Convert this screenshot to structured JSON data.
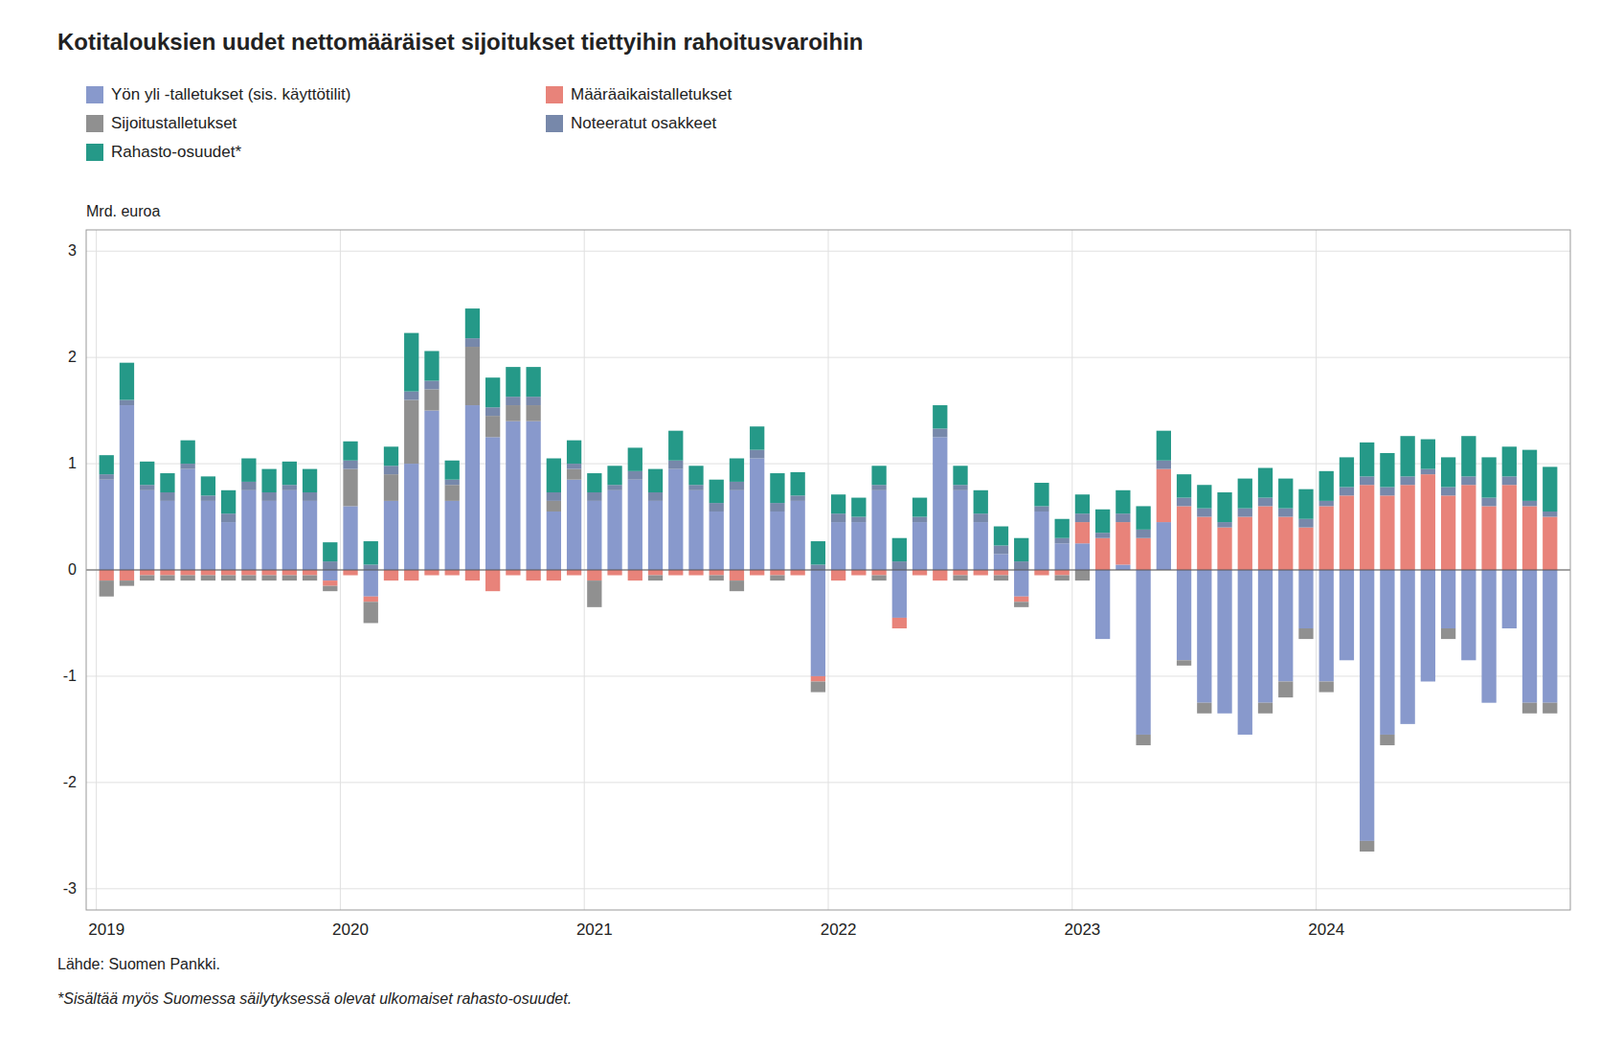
{
  "chart_data": {
    "type": "bar",
    "stacked": true,
    "title": "Kotitalouksien uudet nettomääräiset sijoitukset tiettyihin rahoitusvaroihin",
    "ylabel": "Mrd. euroa",
    "annotations": [
      "Lähde: Suomen Pankki.",
      "*Sisältää myös Suomessa säilytyksessä olevat ulkomaiset rahasto-osuudet."
    ],
    "categories": [
      "2019",
      null,
      null,
      null,
      null,
      null,
      null,
      null,
      null,
      null,
      null,
      null,
      "2020",
      null,
      null,
      null,
      null,
      null,
      null,
      null,
      null,
      null,
      null,
      null,
      "2021",
      null,
      null,
      null,
      null,
      null,
      null,
      null,
      null,
      null,
      null,
      null,
      "2022",
      null,
      null,
      null,
      null,
      null,
      null,
      null,
      null,
      null,
      null,
      null,
      "2023",
      null,
      null,
      null,
      null,
      null,
      null,
      null,
      null,
      null,
      null,
      null,
      "2024",
      null,
      null,
      null,
      null,
      null,
      null,
      null,
      null,
      null,
      null,
      null
    ],
    "series": [
      {
        "name": "Yön yli -talletukset (sis. käyttötilit)",
        "color": "#8899cc",
        "values": [
          0.85,
          1.55,
          0.75,
          0.65,
          0.95,
          0.65,
          0.45,
          0.75,
          0.65,
          0.75,
          0.65,
          -0.1,
          0.6,
          -0.25,
          0.65,
          1.0,
          1.5,
          0.65,
          1.55,
          1.25,
          1.4,
          1.4,
          0.55,
          0.85,
          0.65,
          0.75,
          0.85,
          0.65,
          0.95,
          0.75,
          0.55,
          0.75,
          1.05,
          0.55,
          0.65,
          -1.0,
          0.45,
          0.45,
          0.75,
          -0.45,
          0.45,
          1.25,
          0.75,
          0.45,
          0.15,
          -0.25,
          0.55,
          0.25,
          0.25,
          -0.65,
          0.05,
          -1.55,
          0.45,
          -0.85,
          -1.25,
          -1.35,
          -1.55,
          -1.25,
          -1.05,
          -0.55,
          -1.05,
          -0.85,
          -2.55,
          -1.55,
          -1.45,
          -1.05,
          -0.55,
          -0.85,
          -1.25,
          -0.55,
          -1.25,
          -1.25
        ]
      },
      {
        "name": "Määräaikaistalletukset",
        "color": "#e8837a",
        "values": [
          -0.1,
          -0.1,
          -0.05,
          -0.05,
          -0.05,
          -0.05,
          -0.05,
          -0.05,
          -0.05,
          -0.05,
          -0.05,
          -0.05,
          -0.05,
          -0.05,
          -0.1,
          -0.1,
          -0.05,
          -0.05,
          -0.1,
          -0.2,
          -0.05,
          -0.1,
          -0.1,
          -0.05,
          -0.1,
          -0.05,
          -0.1,
          -0.05,
          -0.05,
          -0.05,
          -0.05,
          -0.1,
          -0.05,
          -0.05,
          -0.05,
          -0.05,
          -0.1,
          -0.05,
          -0.05,
          -0.1,
          -0.05,
          -0.1,
          -0.05,
          -0.05,
          -0.05,
          -0.05,
          -0.05,
          -0.05,
          0.2,
          0.3,
          0.4,
          0.3,
          0.5,
          0.6,
          0.5,
          0.4,
          0.5,
          0.6,
          0.5,
          0.4,
          0.6,
          0.7,
          0.8,
          0.7,
          0.8,
          0.9,
          0.7,
          0.8,
          0.6,
          0.8,
          0.6,
          0.5
        ]
      },
      {
        "name": "Sijoitustalletukset",
        "color": "#909090",
        "values": [
          -0.15,
          -0.05,
          -0.05,
          -0.05,
          -0.05,
          -0.05,
          -0.05,
          -0.05,
          -0.05,
          -0.05,
          -0.05,
          -0.05,
          0.35,
          -0.2,
          0.25,
          0.6,
          0.2,
          0.15,
          0.55,
          0.2,
          0.15,
          0.15,
          0.1,
          0.1,
          -0.25,
          0.0,
          0.0,
          -0.05,
          0.0,
          0.0,
          -0.05,
          -0.1,
          0.0,
          -0.05,
          0.0,
          -0.1,
          0.0,
          0.0,
          -0.05,
          0.0,
          0.0,
          0.0,
          -0.05,
          0.0,
          -0.05,
          -0.05,
          0.0,
          -0.05,
          -0.1,
          0.0,
          0.0,
          -0.1,
          0.0,
          -0.05,
          -0.1,
          0.0,
          0.0,
          -0.1,
          -0.15,
          -0.1,
          -0.1,
          0.0,
          -0.1,
          -0.1,
          0.0,
          0.0,
          -0.1,
          0.0,
          0.0,
          0.0,
          -0.1,
          -0.1
        ]
      },
      {
        "name": "Noteeratut osakkeet",
        "color": "#7788aa",
        "values": [
          0.05,
          0.05,
          0.05,
          0.08,
          0.05,
          0.05,
          0.08,
          0.08,
          0.08,
          0.05,
          0.08,
          0.08,
          0.08,
          0.05,
          0.08,
          0.08,
          0.08,
          0.05,
          0.08,
          0.08,
          0.08,
          0.08,
          0.08,
          0.05,
          0.08,
          0.05,
          0.08,
          0.08,
          0.08,
          0.05,
          0.08,
          0.08,
          0.08,
          0.08,
          0.05,
          0.05,
          0.08,
          0.05,
          0.05,
          0.08,
          0.05,
          0.08,
          0.05,
          0.08,
          0.08,
          0.08,
          0.05,
          0.05,
          0.08,
          0.05,
          0.08,
          0.08,
          0.08,
          0.08,
          0.08,
          0.05,
          0.08,
          0.08,
          0.08,
          0.08,
          0.05,
          0.08,
          0.08,
          0.08,
          0.08,
          0.05,
          0.08,
          0.08,
          0.08,
          0.08,
          0.05,
          0.05
        ]
      },
      {
        "name": "Rahasto-osuudet*",
        "color": "#259988",
        "values": [
          0.18,
          0.35,
          0.22,
          0.18,
          0.22,
          0.18,
          0.22,
          0.22,
          0.22,
          0.22,
          0.22,
          0.18,
          0.18,
          0.22,
          0.18,
          0.55,
          0.28,
          0.18,
          0.28,
          0.28,
          0.28,
          0.28,
          0.32,
          0.22,
          0.18,
          0.18,
          0.22,
          0.22,
          0.28,
          0.18,
          0.22,
          0.22,
          0.22,
          0.28,
          0.22,
          0.22,
          0.18,
          0.18,
          0.18,
          0.22,
          0.18,
          0.22,
          0.18,
          0.22,
          0.18,
          0.22,
          0.22,
          0.18,
          0.18,
          0.22,
          0.22,
          0.22,
          0.28,
          0.22,
          0.22,
          0.28,
          0.28,
          0.28,
          0.28,
          0.28,
          0.28,
          0.28,
          0.32,
          0.32,
          0.38,
          0.28,
          0.28,
          0.38,
          0.38,
          0.28,
          0.48,
          0.42
        ]
      }
    ],
    "ylim": [
      -3.2,
      3.2
    ],
    "yticks": [
      -3,
      -2,
      -1,
      0,
      1,
      2,
      3
    ],
    "grid": true,
    "legend": "top"
  }
}
